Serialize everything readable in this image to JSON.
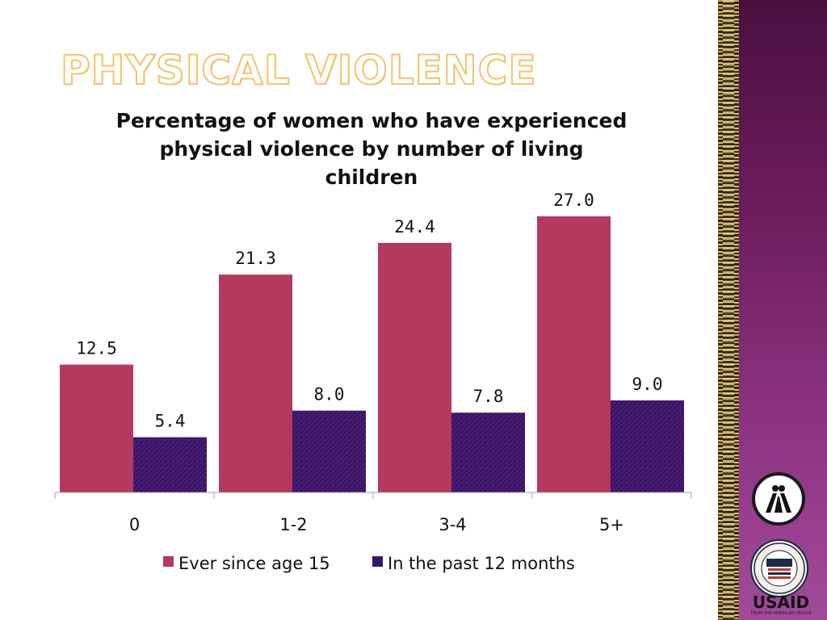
{
  "slide": {
    "title": "PHYSICAL VIOLENCE"
  },
  "chart_data": {
    "type": "bar",
    "title": "Percentage of women who have experienced physical violence by number of living children",
    "title_lines": [
      "Percentage of women who have experienced",
      "physical violence by number of living",
      "children"
    ],
    "categories": [
      "0",
      "1-2",
      "3-4",
      "5+"
    ],
    "series": [
      {
        "name": "Ever since age 15",
        "values": [
          12.5,
          21.3,
          24.4,
          27.0
        ],
        "labels": [
          "12.5",
          "21.3",
          "24.4",
          "27.0"
        ],
        "color": "#b5385f"
      },
      {
        "name": "In the past 12 months",
        "values": [
          5.4,
          8.0,
          7.8,
          9.0
        ],
        "labels": [
          "5.4",
          "8.0",
          "7.8",
          "9.0"
        ],
        "color": "#3b1565"
      }
    ],
    "ylim": [
      0,
      30
    ],
    "xlabel": "",
    "ylabel": "",
    "grid": false,
    "legend": "bottom"
  },
  "branding": {
    "usaid": "USAID",
    "usaid_tagline": "FROM THE AMERICAN PEOPLE",
    "icons": [
      "figures-logo-icon",
      "usaid-seal-icon"
    ]
  }
}
